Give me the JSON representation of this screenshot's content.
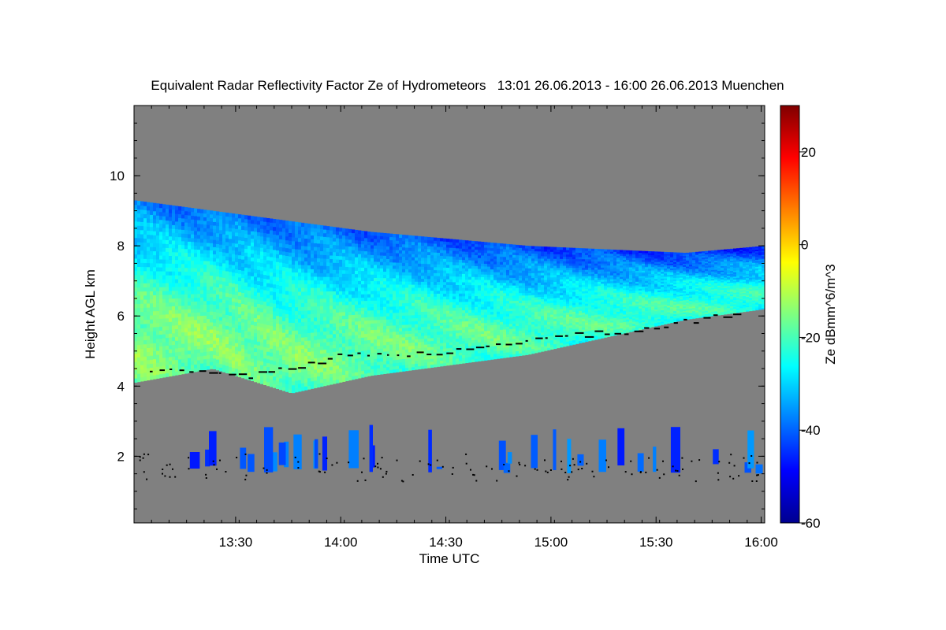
{
  "chart_data": {
    "type": "heatmap",
    "title": "Equivalent Radar Reflectivity Factor Ze of Hydrometeors   13:01 26.06.2013 - 16:00 26.06.2013 Muenchen",
    "xlabel": "Time UTC",
    "ylabel": "Height AGL km",
    "colorbar_label": "Ze dBmm^6/m^3",
    "x_range": [
      "13:01",
      "16:01"
    ],
    "ylim": [
      0.1,
      12.0
    ],
    "x_ticks": [
      "13:30",
      "14:00",
      "14:30",
      "15:00",
      "15:30",
      "16:00"
    ],
    "y_ticks": [
      "2",
      "4",
      "6",
      "8",
      "10"
    ],
    "colorbar_range": [
      -60,
      30
    ],
    "colorbar_ticks": [
      "20",
      "0",
      "-20",
      "-40",
      "-60"
    ],
    "colormap": "jet",
    "no_data_color": "#808080",
    "layers": [
      {
        "name": "upper cloud layer",
        "base_km": [
          4.1,
          4.5,
          3.8,
          4.3,
          4.6,
          4.9,
          5.4,
          5.9,
          6.2
        ],
        "top_km": [
          9.3,
          9.0,
          8.7,
          8.4,
          8.2,
          8.0,
          7.9,
          7.8,
          8.0
        ],
        "peak_ze_dbz": -8
      },
      {
        "name": "low-level convective cells",
        "base_km": 1.3,
        "top_km": 2.5,
        "peak_ze_dbz": -35
      }
    ],
    "bright_band_markers_km": [
      4.5,
      4.3,
      4.9,
      4.95,
      5.4,
      5.6,
      6.1
    ],
    "grid": false,
    "legend": "colorbar right"
  }
}
